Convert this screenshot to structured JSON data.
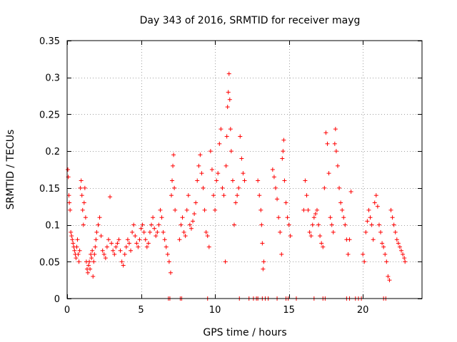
{
  "chart_data": {
    "type": "scatter",
    "title": "Day 343 of 2016, SRMTID for receiver mayg",
    "xlabel": "GPS time / hours",
    "ylabel": "SRMTID / TECUs",
    "xlim": [
      0,
      24
    ],
    "ylim": [
      0,
      0.35
    ],
    "x_ticks": [
      0,
      5,
      10,
      15,
      20
    ],
    "x_tick_labels": [
      "0",
      "5",
      "10",
      "15",
      "20"
    ],
    "y_ticks": [
      0,
      0.05,
      0.1,
      0.15,
      0.2,
      0.25,
      0.3,
      0.35
    ],
    "y_tick_labels": [
      "0",
      "0.05",
      "0.1",
      "0.15",
      "0.2",
      "0.25",
      "0.3",
      "0.35"
    ],
    "grid": true,
    "marker": "+",
    "marker_color": "#ff0000",
    "series": [
      {
        "name": "SRMTID",
        "points": [
          [
            0.05,
            0.175
          ],
          [
            0.08,
            0.165
          ],
          [
            0.12,
            0.14
          ],
          [
            0.15,
            0.13
          ],
          [
            0.2,
            0.12
          ],
          [
            0.25,
            0.09
          ],
          [
            0.3,
            0.085
          ],
          [
            0.35,
            0.08
          ],
          [
            0.4,
            0.075
          ],
          [
            0.45,
            0.07
          ],
          [
            0.5,
            0.065
          ],
          [
            0.55,
            0.06
          ],
          [
            0.6,
            0.055
          ],
          [
            0.65,
            0.07
          ],
          [
            0.7,
            0.08
          ],
          [
            0.75,
            0.06
          ],
          [
            0.8,
            0.05
          ],
          [
            0.85,
            0.065
          ],
          [
            0.9,
            0.15
          ],
          [
            0.95,
            0.16
          ],
          [
            1.0,
            0.14
          ],
          [
            1.05,
            0.12
          ],
          [
            1.1,
            0.1
          ],
          [
            1.15,
            0.13
          ],
          [
            1.2,
            0.15
          ],
          [
            1.25,
            0.11
          ],
          [
            1.3,
            0.05
          ],
          [
            1.35,
            0.04
          ],
          [
            1.4,
            0.035
          ],
          [
            1.45,
            0.045
          ],
          [
            1.5,
            0.05
          ],
          [
            1.55,
            0.04
          ],
          [
            1.6,
            0.06
          ],
          [
            1.65,
            0.055
          ],
          [
            1.7,
            0.065
          ],
          [
            1.75,
            0.03
          ],
          [
            1.8,
            0.05
          ],
          [
            1.85,
            0.06
          ],
          [
            1.9,
            0.07
          ],
          [
            1.95,
            0.08
          ],
          [
            2.0,
            0.09
          ],
          [
            2.1,
            0.1
          ],
          [
            2.2,
            0.11
          ],
          [
            2.3,
            0.085
          ],
          [
            2.4,
            0.065
          ],
          [
            2.5,
            0.06
          ],
          [
            2.6,
            0.055
          ],
          [
            2.7,
            0.07
          ],
          [
            2.8,
            0.08
          ],
          [
            2.9,
            0.138
          ],
          [
            3.0,
            0.075
          ],
          [
            3.1,
            0.065
          ],
          [
            3.2,
            0.06
          ],
          [
            3.3,
            0.07
          ],
          [
            3.4,
            0.075
          ],
          [
            3.5,
            0.08
          ],
          [
            3.6,
            0.065
          ],
          [
            3.7,
            0.05
          ],
          [
            3.8,
            0.045
          ],
          [
            3.9,
            0.06
          ],
          [
            4.0,
            0.07
          ],
          [
            4.1,
            0.08
          ],
          [
            4.2,
            0.075
          ],
          [
            4.3,
            0.065
          ],
          [
            4.4,
            0.09
          ],
          [
            4.5,
            0.1
          ],
          [
            4.6,
            0.085
          ],
          [
            4.7,
            0.075
          ],
          [
            4.8,
            0.07
          ],
          [
            4.9,
            0.08
          ],
          [
            5.0,
            0.095
          ],
          [
            5.1,
            0.1
          ],
          [
            5.2,
            0.09
          ],
          [
            5.3,
            0.08
          ],
          [
            5.4,
            0.07
          ],
          [
            5.5,
            0.075
          ],
          [
            5.6,
            0.09
          ],
          [
            5.7,
            0.1
          ],
          [
            5.8,
            0.11
          ],
          [
            5.9,
            0.095
          ],
          [
            6.0,
            0.085
          ],
          [
            6.1,
            0.09
          ],
          [
            6.2,
            0.1
          ],
          [
            6.3,
            0.12
          ],
          [
            6.4,
            0.11
          ],
          [
            6.5,
            0.09
          ],
          [
            6.6,
            0.08
          ],
          [
            6.7,
            0.07
          ],
          [
            6.8,
            0.06
          ],
          [
            6.9,
            0.05
          ],
          [
            7.0,
            0.035
          ],
          [
            7.05,
            0.14
          ],
          [
            7.1,
            0.16
          ],
          [
            7.15,
            0.18
          ],
          [
            7.2,
            0.195
          ],
          [
            7.25,
            0.15
          ],
          [
            7.3,
            0.12
          ],
          [
            7.6,
            0.08
          ],
          [
            7.7,
            0.1
          ],
          [
            7.8,
            0.11
          ],
          [
            7.9,
            0.09
          ],
          [
            8.0,
            0.085
          ],
          [
            8.1,
            0.12
          ],
          [
            8.2,
            0.14
          ],
          [
            8.3,
            0.1
          ],
          [
            8.4,
            0.095
          ],
          [
            8.5,
            0.105
          ],
          [
            8.6,
            0.115
          ],
          [
            8.7,
            0.13
          ],
          [
            8.8,
            0.16
          ],
          [
            8.9,
            0.18
          ],
          [
            9.0,
            0.195
          ],
          [
            9.1,
            0.17
          ],
          [
            9.2,
            0.15
          ],
          [
            9.3,
            0.12
          ],
          [
            9.4,
            0.09
          ],
          [
            9.5,
            0.085
          ],
          [
            9.6,
            0.07
          ],
          [
            9.7,
            0.2
          ],
          [
            9.8,
            0.175
          ],
          [
            9.9,
            0.14
          ],
          [
            10.0,
            0.12
          ],
          [
            10.1,
            0.16
          ],
          [
            10.2,
            0.17
          ],
          [
            10.3,
            0.21
          ],
          [
            10.4,
            0.23
          ],
          [
            10.5,
            0.15
          ],
          [
            10.6,
            0.14
          ],
          [
            10.7,
            0.05
          ],
          [
            10.75,
            0.18
          ],
          [
            10.8,
            0.22
          ],
          [
            10.85,
            0.26
          ],
          [
            10.9,
            0.28
          ],
          [
            10.95,
            0.305
          ],
          [
            11.0,
            0.27
          ],
          [
            11.05,
            0.23
          ],
          [
            11.1,
            0.2
          ],
          [
            11.2,
            0.16
          ],
          [
            11.3,
            0.1
          ],
          [
            11.4,
            0.13
          ],
          [
            11.5,
            0.14
          ],
          [
            11.6,
            0.15
          ],
          [
            11.7,
            0.22
          ],
          [
            11.8,
            0.19
          ],
          [
            11.9,
            0.17
          ],
          [
            12.0,
            0.16
          ],
          [
            12.9,
            0.16
          ],
          [
            13.0,
            0.14
          ],
          [
            13.1,
            0.12
          ],
          [
            13.15,
            0.1
          ],
          [
            13.2,
            0.075
          ],
          [
            13.25,
            0.04
          ],
          [
            13.3,
            0.05
          ],
          [
            13.9,
            0.175
          ],
          [
            14.0,
            0.165
          ],
          [
            14.1,
            0.15
          ],
          [
            14.2,
            0.135
          ],
          [
            14.3,
            0.11
          ],
          [
            14.4,
            0.09
          ],
          [
            14.5,
            0.06
          ],
          [
            14.55,
            0.19
          ],
          [
            14.6,
            0.2
          ],
          [
            14.65,
            0.215
          ],
          [
            14.7,
            0.16
          ],
          [
            14.8,
            0.13
          ],
          [
            14.9,
            0.11
          ],
          [
            15.0,
            0.1
          ],
          [
            15.1,
            0.085
          ],
          [
            16.0,
            0.12
          ],
          [
            16.1,
            0.16
          ],
          [
            16.2,
            0.14
          ],
          [
            16.3,
            0.12
          ],
          [
            16.4,
            0.09
          ],
          [
            16.5,
            0.085
          ],
          [
            16.6,
            0.1
          ],
          [
            16.7,
            0.11
          ],
          [
            16.8,
            0.115
          ],
          [
            16.9,
            0.12
          ],
          [
            17.0,
            0.1
          ],
          [
            17.1,
            0.085
          ],
          [
            17.2,
            0.075
          ],
          [
            17.3,
            0.07
          ],
          [
            17.4,
            0.15
          ],
          [
            17.5,
            0.225
          ],
          [
            17.6,
            0.21
          ],
          [
            17.7,
            0.17
          ],
          [
            17.8,
            0.11
          ],
          [
            17.9,
            0.1
          ],
          [
            18.0,
            0.09
          ],
          [
            18.1,
            0.21
          ],
          [
            18.15,
            0.23
          ],
          [
            18.2,
            0.2
          ],
          [
            18.3,
            0.18
          ],
          [
            18.4,
            0.15
          ],
          [
            18.5,
            0.13
          ],
          [
            18.6,
            0.12
          ],
          [
            18.7,
            0.11
          ],
          [
            18.8,
            0.1
          ],
          [
            18.9,
            0.08
          ],
          [
            19.0,
            0.06
          ],
          [
            19.1,
            0.08
          ],
          [
            19.2,
            0.145
          ],
          [
            20.0,
            0.06
          ],
          [
            20.1,
            0.05
          ],
          [
            20.2,
            0.09
          ],
          [
            20.3,
            0.105
          ],
          [
            20.4,
            0.12
          ],
          [
            20.5,
            0.11
          ],
          [
            20.6,
            0.1
          ],
          [
            20.7,
            0.08
          ],
          [
            20.8,
            0.13
          ],
          [
            20.9,
            0.14
          ],
          [
            21.0,
            0.125
          ],
          [
            21.1,
            0.1
          ],
          [
            21.2,
            0.09
          ],
          [
            21.3,
            0.075
          ],
          [
            21.4,
            0.07
          ],
          [
            21.5,
            0.06
          ],
          [
            21.6,
            0.05
          ],
          [
            21.7,
            0.03
          ],
          [
            21.8,
            0.025
          ],
          [
            21.9,
            0.12
          ],
          [
            22.0,
            0.11
          ],
          [
            22.1,
            0.1
          ],
          [
            22.2,
            0.09
          ],
          [
            22.3,
            0.08
          ],
          [
            22.4,
            0.075
          ],
          [
            22.5,
            0.07
          ],
          [
            22.6,
            0.065
          ],
          [
            22.7,
            0.06
          ],
          [
            22.8,
            0.055
          ],
          [
            22.85,
            0.05
          ],
          [
            6.85,
            0
          ],
          [
            6.95,
            0
          ],
          [
            7.65,
            0
          ],
          [
            7.75,
            0
          ],
          [
            9.5,
            0
          ],
          [
            11.65,
            0
          ],
          [
            12.3,
            0
          ],
          [
            12.6,
            0
          ],
          [
            12.8,
            0
          ],
          [
            12.9,
            0
          ],
          [
            13.2,
            0
          ],
          [
            13.4,
            0
          ],
          [
            13.6,
            0
          ],
          [
            14.2,
            0
          ],
          [
            14.8,
            0
          ],
          [
            14.95,
            0
          ],
          [
            15.5,
            0
          ],
          [
            16.7,
            0
          ],
          [
            17.3,
            0
          ],
          [
            17.45,
            0
          ],
          [
            18.9,
            0
          ],
          [
            19.1,
            0
          ],
          [
            19.5,
            0
          ],
          [
            19.7,
            0
          ],
          [
            19.9,
            0
          ],
          [
            21.4,
            0
          ],
          [
            21.55,
            0
          ]
        ]
      }
    ]
  }
}
